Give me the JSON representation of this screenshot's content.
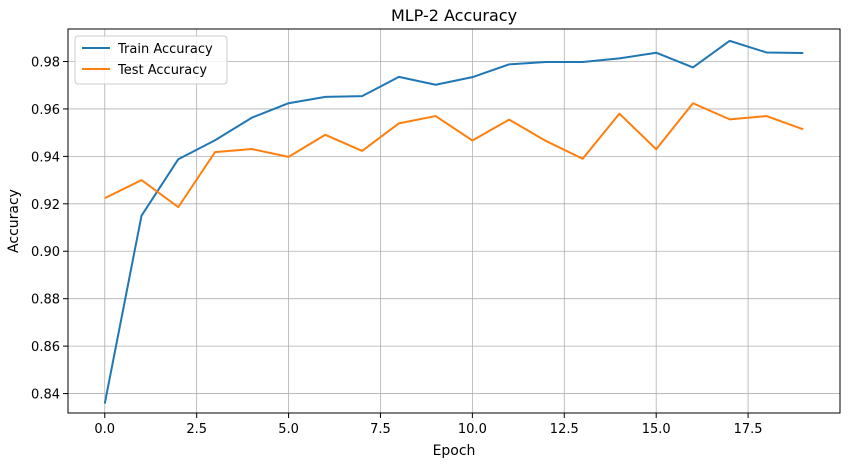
{
  "chart_data": {
    "type": "line",
    "title": "MLP-2 Accuracy",
    "xlabel": "Epoch",
    "ylabel": "Accuracy",
    "x": [
      0,
      1,
      2,
      3,
      4,
      5,
      6,
      7,
      8,
      9,
      10,
      11,
      12,
      13,
      14,
      15,
      16,
      17,
      18,
      19
    ],
    "xlim": [
      -1.0,
      20.0
    ],
    "ylim": [
      0.8318,
      0.9937
    ],
    "xticks": [
      0.0,
      2.5,
      5.0,
      7.5,
      10.0,
      12.5,
      15.0,
      17.5
    ],
    "xtick_labels": [
      "0.0",
      "2.5",
      "5.0",
      "7.5",
      "10.0",
      "12.5",
      "15.0",
      "17.5"
    ],
    "yticks": [
      0.84,
      0.86,
      0.88,
      0.9,
      0.92,
      0.94,
      0.96,
      0.98
    ],
    "ytick_labels": [
      "0.84",
      "0.86",
      "0.88",
      "0.90",
      "0.92",
      "0.94",
      "0.96",
      "0.98"
    ],
    "grid": true,
    "legend_position": "top-left",
    "series": [
      {
        "name": "Train Accuracy",
        "color": "#1f77b4",
        "values": [
          0.8358,
          0.915,
          0.9388,
          0.9468,
          0.9563,
          0.9624,
          0.9651,
          0.9654,
          0.9735,
          0.9702,
          0.9734,
          0.9788,
          0.9798,
          0.9798,
          0.9813,
          0.9837,
          0.9775,
          0.9887,
          0.9838,
          0.9836
        ]
      },
      {
        "name": "Test Accuracy",
        "color": "#ff7f0e",
        "values": [
          0.9224,
          0.93,
          0.9186,
          0.9418,
          0.9431,
          0.9398,
          0.9491,
          0.9423,
          0.9539,
          0.957,
          0.9467,
          0.9555,
          0.9465,
          0.939,
          0.958,
          0.943,
          0.9624,
          0.9556,
          0.957,
          0.9514
        ]
      }
    ]
  }
}
